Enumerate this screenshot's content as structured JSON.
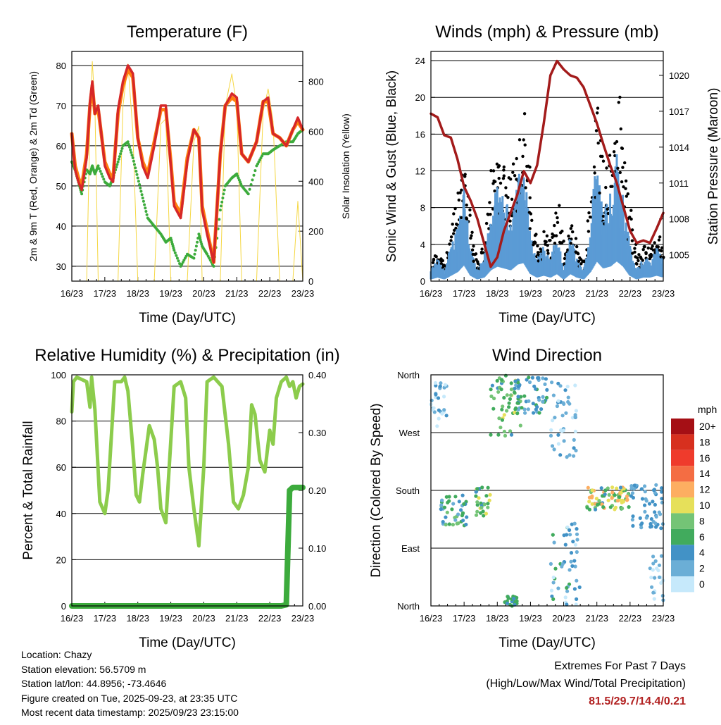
{
  "x_ticks": [
    "16/23",
    "17/23",
    "18/23",
    "19/23",
    "20/23",
    "21/23",
    "22/23",
    "23/23"
  ],
  "colors": {
    "t2m": "#d62728",
    "t9m": "#ff7f0e",
    "td": "#3cab3c",
    "solar": "#f5d742",
    "wind": "#5b9bd5",
    "gust": "#000000",
    "pressure": "#a31b1b",
    "rh": "#8ccc4c",
    "rain": "#3cab3c",
    "grid": "#000000"
  },
  "speed_scale": {
    "title": "mph",
    "labels": [
      "20+",
      "18",
      "16",
      "14",
      "12",
      "10",
      "8",
      "6",
      "4",
      "2",
      "0"
    ],
    "colors": [
      "#a50f15",
      "#d7301f",
      "#ef3b2c",
      "#f46d43",
      "#fdae61",
      "#e6e05a",
      "#74c476",
      "#41ab5d",
      "#4292c6",
      "#6baed6",
      "#c6e9fb"
    ]
  },
  "info": {
    "location": "Location: Chazy",
    "elevation": "Station elevation: 56.5709 m",
    "latlon": "Station lat/lon: 44.8956; -73.4646",
    "created": "Figure created on Tue, 2025-09-23, at 23:35 UTC",
    "recent": "Most recent data timestamp: 2025/09/23 23:15:00"
  },
  "extremes": {
    "title": "Extremes For Past 7 Days",
    "subtitle": "(High/Low/Max Wind/Total Precipitation)",
    "values": "81.5/29.7/14.4/0.21"
  },
  "chart_data": [
    {
      "type": "line",
      "title": "Temperature (F)",
      "xlabel": "Time (Day/UTC)",
      "ylabel": "2m & 9m T (Red, Orange) & 2m Td (Green)",
      "ylabel_right": "Solar Insolation (Yellow)",
      "ylim": [
        26.3,
        83.5
      ],
      "yticks": [
        30,
        40,
        50,
        60,
        70,
        80
      ],
      "ylim_right": [
        0,
        920
      ],
      "yticks_right": [
        0,
        200,
        400,
        600,
        800
      ],
      "x": [
        0,
        0.1,
        0.2,
        0.3,
        0.45,
        0.55,
        0.62,
        0.7,
        0.8,
        1.0,
        1.15,
        1.25,
        1.4,
        1.55,
        1.7,
        1.85,
        2.0,
        2.15,
        2.3,
        2.5,
        2.7,
        2.85,
        3.0,
        3.1,
        3.3,
        3.5,
        3.7,
        3.85,
        3.95,
        4.1,
        4.3,
        4.5,
        4.65,
        4.85,
        5.0,
        5.15,
        5.35,
        5.6,
        5.8,
        5.95,
        6.1,
        6.3,
        6.5,
        6.7,
        6.85,
        7.0
      ],
      "series": [
        {
          "name": "2m T",
          "values": [
            63,
            54,
            51,
            49,
            57,
            71,
            76,
            68,
            70,
            55,
            52,
            51,
            69,
            76,
            80,
            78,
            62,
            55,
            52,
            60,
            70,
            70,
            55,
            45,
            42,
            56,
            64,
            62,
            44,
            38,
            31,
            58,
            70,
            73,
            72,
            58,
            56,
            61,
            71,
            72,
            63,
            62,
            60,
            64,
            67,
            64
          ]
        },
        {
          "name": "9m T",
          "values": [
            63,
            55,
            52,
            50,
            58,
            70,
            75,
            68,
            69,
            56,
            53,
            52,
            68,
            75,
            79,
            77,
            62,
            56,
            53,
            61,
            69,
            69,
            56,
            46,
            43,
            57,
            64,
            62,
            45,
            39,
            31,
            58,
            70,
            72,
            71,
            58,
            56,
            61,
            71,
            71,
            63,
            62,
            60,
            64,
            66,
            64
          ]
        },
        {
          "name": "2m Td",
          "values": [
            56,
            54,
            51,
            48,
            54,
            53,
            55,
            53,
            55,
            51,
            50,
            52,
            56,
            60,
            61,
            57,
            52,
            47,
            42,
            40,
            38,
            36,
            37,
            34,
            30,
            33,
            32,
            38,
            35,
            33,
            30,
            44,
            50,
            52,
            53,
            50,
            48,
            55,
            58,
            58,
            59,
            60,
            61,
            61,
            63,
            64
          ]
        },
        {
          "name": "Solar",
          "values": [
            0,
            0,
            0,
            0,
            0,
            650,
            880,
            700,
            0,
            0,
            0,
            0,
            0,
            700,
            870,
            600,
            0,
            0,
            0,
            0,
            630,
            650,
            0,
            0,
            0,
            0,
            560,
            620,
            0,
            0,
            0,
            0,
            700,
            830,
            700,
            0,
            0,
            0,
            680,
            770,
            640,
            0,
            0,
            0,
            320,
            0
          ]
        }
      ]
    },
    {
      "type": "line",
      "title": "Winds (mph) & Pressure (mb)",
      "xlabel": "Time (Day/UTC)",
      "ylabel": "Sonic Wind & Gust (Blue, Black)",
      "ylabel_right": "Station Pressure (Maroon)",
      "ylim": [
        0,
        25
      ],
      "yticks": [
        0,
        4,
        8,
        12,
        16,
        20,
        24
      ],
      "ylim_right": [
        1002.8,
        1022.0
      ],
      "yticks_right": [
        1005,
        1008,
        1011,
        1014,
        1017,
        1020
      ],
      "x": [
        0,
        0.2,
        0.4,
        0.6,
        0.8,
        1.0,
        1.2,
        1.4,
        1.6,
        1.8,
        2.0,
        2.2,
        2.4,
        2.6,
        2.8,
        3.0,
        3.2,
        3.4,
        3.6,
        3.8,
        4.0,
        4.2,
        4.4,
        4.6,
        4.8,
        5.0,
        5.2,
        5.4,
        5.6,
        5.8,
        6.0,
        6.2,
        6.4,
        6.6,
        6.8,
        7.0
      ],
      "series": [
        {
          "name": "Sonic Wind",
          "values": [
            1,
            2,
            1,
            3,
            5,
            9,
            3,
            1,
            2,
            6,
            8,
            7,
            6,
            9,
            10,
            4,
            2,
            3,
            2,
            4,
            1,
            4,
            2,
            1,
            5,
            11,
            7,
            8,
            11,
            8,
            3,
            1,
            2,
            2,
            3,
            2
          ]
        },
        {
          "name": "Gust",
          "values": [
            2,
            3,
            2,
            5,
            9,
            14,
            5,
            2,
            4,
            11,
            13,
            12,
            10,
            14,
            17,
            7,
            3,
            5,
            4,
            8,
            2,
            7,
            3,
            2,
            9,
            18,
            11,
            13,
            19,
            13,
            6,
            2,
            4,
            3,
            5,
            3
          ]
        },
        {
          "name": "Station Pressure",
          "values": [
            1016.8,
            1016.5,
            1015.0,
            1014.8,
            1013.0,
            1010.7,
            1009.5,
            1008.0,
            1006.0,
            1004.0,
            1004.8,
            1007.0,
            1008.5,
            1010.0,
            1012.0,
            1011.0,
            1012.5,
            1016.0,
            1020.0,
            1021.2,
            1020.5,
            1020.0,
            1019.8,
            1019.0,
            1017.5,
            1016.0,
            1014.2,
            1012.5,
            1011.0,
            1009.0,
            1007.0,
            1006.0,
            1006.2,
            1006.0,
            1007.2,
            1008.5
          ]
        }
      ]
    },
    {
      "type": "line",
      "title": "Relative Humidity (%) & Precipitation (in)",
      "xlabel": "Time (Day/UTC)",
      "ylabel": "Percent & Total Rainfall",
      "ylim": [
        0,
        100
      ],
      "yticks": [
        0,
        20,
        40,
        60,
        80,
        100
      ],
      "ylim_right": [
        0,
        0.4
      ],
      "yticks_right": [
        "0.00",
        "0.10",
        "0.20",
        "0.30",
        "0.40"
      ],
      "x": [
        0,
        0.05,
        0.15,
        0.3,
        0.45,
        0.55,
        0.6,
        0.7,
        0.85,
        1.0,
        1.1,
        1.3,
        1.5,
        1.6,
        1.7,
        1.85,
        1.95,
        2.05,
        2.15,
        2.35,
        2.5,
        2.6,
        2.7,
        2.85,
        3.1,
        3.3,
        3.45,
        3.55,
        3.7,
        3.85,
        4.0,
        4.1,
        4.3,
        4.55,
        4.75,
        4.9,
        5.05,
        5.2,
        5.35,
        5.45,
        5.55,
        5.7,
        5.85,
        6.0,
        6.1,
        6.2,
        6.35,
        6.5,
        6.6,
        6.7,
        6.8,
        6.9,
        7.0
      ],
      "series": [
        {
          "name": "Relative Humidity",
          "values": [
            84,
            97,
            99,
            98,
            97,
            86,
            99,
            85,
            45,
            40,
            50,
            97,
            97,
            99,
            93,
            68,
            48,
            45,
            57,
            78,
            72,
            60,
            42,
            36,
            95,
            97,
            90,
            60,
            42,
            26,
            60,
            97,
            99,
            95,
            70,
            45,
            42,
            48,
            60,
            87,
            83,
            63,
            58,
            76,
            70,
            90,
            97,
            99,
            95,
            97,
            90,
            95,
            96
          ]
        },
        {
          "name": "Total Rainfall",
          "values": [
            0,
            0,
            0,
            0,
            0,
            0,
            0,
            0,
            0,
            0,
            0,
            0,
            0,
            0,
            0,
            0,
            0,
            0,
            0,
            0,
            0,
            0,
            0,
            0,
            0,
            0,
            0,
            0,
            0,
            0,
            0,
            0,
            0,
            0,
            0,
            0,
            0,
            0,
            0,
            0,
            0,
            0,
            0,
            0,
            0,
            0,
            0,
            0.002,
            0.2,
            0.205,
            0.205,
            0.205,
            0.205
          ]
        }
      ]
    },
    {
      "type": "scatter",
      "title": "Wind Direction",
      "xlabel": "Time (Day/UTC)",
      "ylabel": "Direction (Colored By Speed)",
      "yticks": [
        "North",
        "East",
        "South",
        "West",
        "North"
      ],
      "ylim": [
        0,
        360
      ],
      "clusters": [
        {
          "x0": 0.0,
          "x1": 0.5,
          "dir": [
            275,
            350
          ],
          "speed": [
            0,
            4
          ]
        },
        {
          "x0": 0.3,
          "x1": 1.1,
          "dir": [
            125,
            175
          ],
          "speed": [
            2,
            8
          ]
        },
        {
          "x0": 1.3,
          "x1": 1.8,
          "dir": [
            140,
            185
          ],
          "speed": [
            4,
            10
          ]
        },
        {
          "x0": 1.8,
          "x1": 2.7,
          "dir": [
            265,
            360
          ],
          "speed": [
            4,
            10
          ]
        },
        {
          "x0": 2.5,
          "x1": 3.5,
          "dir": [
            300,
            358
          ],
          "speed": [
            2,
            6
          ]
        },
        {
          "x0": 3.6,
          "x1": 4.4,
          "dir": [
            230,
            350
          ],
          "speed": [
            0,
            4
          ]
        },
        {
          "x0": 3.6,
          "x1": 4.5,
          "dir": [
            0,
            130
          ],
          "speed": [
            0,
            6
          ]
        },
        {
          "x0": 4.7,
          "x1": 6.1,
          "dir": [
            150,
            185
          ],
          "speed": [
            4,
            13
          ]
        },
        {
          "x0": 6.0,
          "x1": 7.0,
          "dir": [
            120,
            190
          ],
          "speed": [
            1,
            5
          ]
        },
        {
          "x0": 6.6,
          "x1": 7.0,
          "dir": [
            0,
            80
          ],
          "speed": [
            0,
            2
          ]
        },
        {
          "x0": 2.2,
          "x1": 2.6,
          "dir": [
            0,
            15
          ],
          "speed": [
            4,
            7
          ]
        }
      ]
    }
  ]
}
